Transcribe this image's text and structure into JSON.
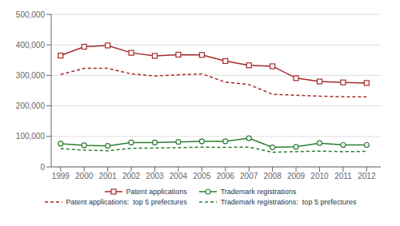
{
  "chart_data": {
    "type": "line",
    "x": [
      1999,
      2000,
      2001,
      2002,
      2003,
      2004,
      2005,
      2006,
      2007,
      2008,
      2009,
      2010,
      2011,
      2012
    ],
    "series": [
      {
        "name": "Patent applications",
        "color": "#a52a2a",
        "marker": "square",
        "line_style": "solid",
        "values": [
          365000,
          394000,
          398000,
          374000,
          364000,
          368000,
          367000,
          347000,
          333000,
          330000,
          291000,
          280000,
          277000,
          275000
        ]
      },
      {
        "name": "Patent applications:  top 5 prefectures",
        "color": "#a52a2a",
        "line_style": "dashed",
        "values": [
          303000,
          323000,
          323000,
          305000,
          298000,
          302000,
          305000,
          278000,
          270000,
          238000,
          235000,
          232000,
          230000,
          230000
        ]
      },
      {
        "name": "Trademark registrations",
        "color": "#2e7d32",
        "marker": "circle",
        "line_style": "solid",
        "values": [
          76000,
          71000,
          69000,
          80000,
          80000,
          82000,
          84000,
          84000,
          94000,
          64000,
          66000,
          78000,
          72000,
          72000
        ]
      },
      {
        "name": "Trademark registrations:  top 5 prefectures",
        "color": "#2e7d32",
        "line_style": "dashed",
        "values": [
          60000,
          55000,
          53000,
          61000,
          62000,
          63000,
          65000,
          64000,
          65000,
          48000,
          50000,
          52000,
          50000,
          51000
        ]
      }
    ],
    "xlim": [
      1998.6,
      2012.6
    ],
    "xticks": [
      1999,
      2000,
      2001,
      2002,
      2003,
      2004,
      2005,
      2006,
      2007,
      2008,
      2009,
      2010,
      2011,
      2012
    ],
    "ylim": [
      0,
      500000
    ],
    "yticks": [
      0,
      {
        "value": 100000,
        "label": "100,000"
      },
      {
        "value": 200000,
        "label": "200,000"
      },
      {
        "value": 300000,
        "label": "300,000"
      },
      {
        "value": 400000,
        "label": "400,000"
      },
      {
        "value": 500000,
        "label": "500,000"
      }
    ],
    "grid": true
  }
}
